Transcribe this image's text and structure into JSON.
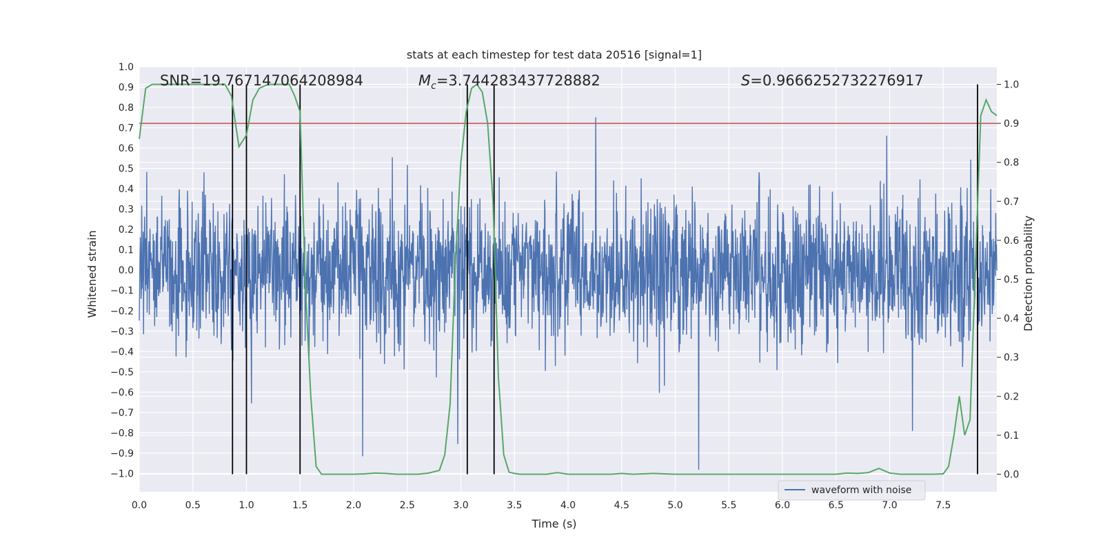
{
  "chart_data": {
    "type": "line",
    "title": "stats at each timestep for test data 20516 [signal=1]",
    "xlabel": "Time (s)",
    "ylabel": "Whitened strain",
    "y2label": "Detection probability",
    "xlim": [
      0.0,
      8.0
    ],
    "ylim": [
      -1.09,
      1.0
    ],
    "y2lim": [
      -0.045,
      1.045
    ],
    "xticks": [
      "0.0",
      "0.5",
      "1.0",
      "1.5",
      "2.0",
      "2.5",
      "3.0",
      "3.5",
      "4.0",
      "4.5",
      "5.0",
      "5.5",
      "6.0",
      "6.5",
      "7.0",
      "7.5"
    ],
    "xtick_values": [
      0.0,
      0.5,
      1.0,
      1.5,
      2.0,
      2.5,
      3.0,
      3.5,
      4.0,
      4.5,
      5.0,
      5.5,
      6.0,
      6.5,
      7.0,
      7.5
    ],
    "yticks": [
      "1.0",
      "0.9",
      "0.8",
      "0.7",
      "0.6",
      "0.5",
      "0.4",
      "0.3",
      "0.2",
      "0.1",
      "0.0",
      "−0.1",
      "−0.2",
      "−0.3",
      "−0.4",
      "−0.5",
      "−0.6",
      "−0.7",
      "−0.8",
      "−0.9",
      "−1.0"
    ],
    "ytick_values": [
      1.0,
      0.9,
      0.8,
      0.7,
      0.6,
      0.5,
      0.4,
      0.3,
      0.2,
      0.1,
      0.0,
      -0.1,
      -0.2,
      -0.3,
      -0.4,
      -0.5,
      -0.6,
      -0.7,
      -0.8,
      -0.9,
      -1.0
    ],
    "y2ticks": [
      "1.0",
      "0.9",
      "0.8",
      "0.7",
      "0.6",
      "0.5",
      "0.4",
      "0.3",
      "0.2",
      "0.1",
      "0.0"
    ],
    "y2tick_values": [
      1.0,
      0.9,
      0.8,
      0.7,
      0.6,
      0.5,
      0.4,
      0.3,
      0.2,
      0.1,
      0.0
    ],
    "annotations": {
      "snr": "SNR=19.767147064208984",
      "mc_symbol": "M",
      "mc_sub": "c",
      "mc_value": "=3.744283437728882",
      "s_symbol": "S",
      "s_value": "=0.9666252732276917"
    },
    "legend": {
      "label": "waveform with noise",
      "position": "lower-right"
    },
    "threshold": {
      "value": 0.9,
      "color": "#c44e52"
    },
    "vlines": [
      0.87,
      1.0,
      1.5,
      3.06,
      3.31,
      7.82
    ],
    "waveform": {
      "name": "waveform with noise",
      "color": "#4c72b0",
      "seed": 20516,
      "envelope": 0.33
    },
    "probability": {
      "name": "Detection probability",
      "color": "#55a868",
      "x": [
        0.0,
        0.06,
        0.12,
        0.2,
        0.3,
        0.4,
        0.5,
        0.6,
        0.7,
        0.8,
        0.86,
        0.93,
        1.0,
        1.06,
        1.12,
        1.2,
        1.3,
        1.4,
        1.45,
        1.5,
        1.55,
        1.6,
        1.65,
        1.7,
        1.75,
        1.8,
        1.9,
        2.0,
        2.1,
        2.2,
        2.3,
        2.4,
        2.5,
        2.6,
        2.7,
        2.8,
        2.85,
        2.9,
        2.95,
        3.0,
        3.05,
        3.1,
        3.15,
        3.2,
        3.25,
        3.3,
        3.35,
        3.4,
        3.45,
        3.5,
        3.55,
        3.6,
        3.7,
        3.8,
        3.9,
        4.0,
        4.1,
        4.2,
        4.3,
        4.4,
        4.5,
        4.6,
        4.7,
        4.8,
        4.9,
        5.0,
        5.1,
        5.2,
        5.3,
        5.4,
        5.5,
        5.6,
        5.7,
        5.8,
        5.9,
        6.0,
        6.1,
        6.2,
        6.3,
        6.4,
        6.5,
        6.6,
        6.7,
        6.8,
        6.9,
        7.0,
        7.1,
        7.2,
        7.3,
        7.4,
        7.5,
        7.55,
        7.6,
        7.65,
        7.7,
        7.75,
        7.8,
        7.85,
        7.9,
        7.95,
        8.0
      ],
      "values": [
        0.86,
        0.99,
        1.0,
        1.0,
        1.0,
        1.0,
        1.0,
        1.0,
        1.0,
        1.0,
        0.97,
        0.84,
        0.87,
        0.96,
        0.99,
        1.0,
        1.0,
        1.0,
        0.97,
        0.93,
        0.48,
        0.2,
        0.02,
        0.0,
        0.0,
        0.0,
        0.0,
        0.0,
        0.001,
        0.003,
        0.002,
        0.0,
        0.0,
        0.0,
        0.003,
        0.01,
        0.05,
        0.18,
        0.55,
        0.8,
        0.93,
        0.99,
        1.0,
        0.98,
        0.9,
        0.7,
        0.25,
        0.05,
        0.005,
        0.002,
        0.0,
        0.0,
        0.0,
        0.0,
        0.004,
        0.0,
        0.0,
        0.0,
        0.0,
        0.0,
        0.002,
        0.0,
        0.001,
        0.002,
        0.001,
        0.0,
        0.0,
        0.0,
        0.0,
        0.0,
        0.0,
        0.0,
        0.0,
        0.0,
        0.0,
        0.0,
        0.0,
        0.0,
        0.0,
        0.0,
        0.0,
        0.003,
        0.002,
        0.004,
        0.015,
        0.003,
        0.0,
        0.0,
        0.0,
        0.0,
        0.001,
        0.02,
        0.1,
        0.2,
        0.1,
        0.14,
        0.53,
        0.92,
        0.96,
        0.93,
        0.92
      ]
    }
  }
}
